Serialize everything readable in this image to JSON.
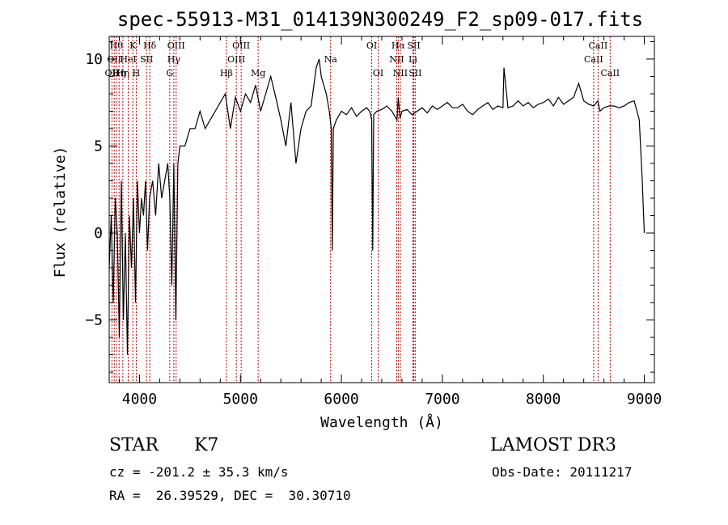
{
  "chart_data": {
    "type": "line",
    "title": "spec-55913-M31_014139N300249_F2_sp09-017.fits",
    "xlabel": "Wavelength (Å)",
    "ylabel": "Flux (relative)",
    "xlim": [
      3700,
      9100
    ],
    "ylim": [
      -8.6,
      11.3
    ],
    "xticks": [
      4000,
      5000,
      6000,
      7000,
      8000,
      9000
    ],
    "yticks": [
      -5,
      0,
      5,
      10
    ],
    "series": [
      {
        "name": "flux",
        "x": [
          3700,
          3720,
          3740,
          3760,
          3780,
          3800,
          3820,
          3840,
          3860,
          3880,
          3900,
          3920,
          3940,
          3960,
          3980,
          4000,
          4020,
          4040,
          4060,
          4080,
          4100,
          4130,
          4160,
          4190,
          4220,
          4250,
          4280,
          4300,
          4320,
          4340,
          4360,
          4380,
          4400,
          4450,
          4500,
          4550,
          4600,
          4650,
          4700,
          4750,
          4800,
          4850,
          4900,
          4950,
          5000,
          5050,
          5100,
          5150,
          5200,
          5250,
          5300,
          5350,
          5400,
          5450,
          5500,
          5550,
          5600,
          5650,
          5700,
          5750,
          5780,
          5800,
          5850,
          5880,
          5900,
          5910,
          5920,
          5950,
          6000,
          6050,
          6100,
          6150,
          6200,
          6250,
          6280,
          6300,
          6310,
          6320,
          6350,
          6400,
          6450,
          6500,
          6550,
          6563,
          6580,
          6600,
          6650,
          6700,
          6750,
          6800,
          6850,
          6900,
          6950,
          7000,
          7050,
          7100,
          7150,
          7200,
          7250,
          7300,
          7350,
          7400,
          7450,
          7500,
          7550,
          7600,
          7610,
          7650,
          7700,
          7750,
          7800,
          7850,
          7900,
          7950,
          8000,
          8050,
          8100,
          8150,
          8200,
          8250,
          8300,
          8350,
          8400,
          8450,
          8500,
          8540,
          8560,
          8600,
          8650,
          8700,
          8750,
          8800,
          8850,
          8900,
          8950,
          8980,
          9000
        ],
        "y": [
          -2,
          1,
          -4,
          2,
          0,
          -6,
          3,
          -5,
          0,
          -7,
          1,
          -2,
          2,
          -4,
          3,
          0,
          2,
          1,
          3,
          -1,
          2,
          3,
          1,
          4,
          2,
          3,
          4,
          2,
          -3,
          4,
          -5,
          4,
          5,
          5,
          6,
          6,
          7,
          6,
          6.5,
          7,
          7.5,
          8,
          6,
          7.8,
          7,
          8,
          7.5,
          8.5,
          7,
          8,
          9,
          7.8,
          6.5,
          5,
          7.5,
          4,
          6,
          7,
          7.3,
          9.5,
          10,
          9,
          8,
          7,
          6,
          -1,
          6,
          6.5,
          7,
          6.8,
          7.2,
          6.7,
          7,
          7.2,
          7,
          6.5,
          -1,
          6.8,
          7,
          7.1,
          7.3,
          7,
          6.5,
          7.8,
          6.6,
          7,
          7.1,
          6.8,
          7,
          7.2,
          6.9,
          7.3,
          7.1,
          7.3,
          7.5,
          7.2,
          7.2,
          7.4,
          7,
          6.8,
          7.1,
          7.3,
          7.5,
          7.1,
          7.3,
          7.2,
          9.5,
          7.2,
          7.3,
          7.6,
          7.3,
          7.5,
          7.2,
          7.4,
          7.5,
          7.7,
          7.3,
          7.8,
          7.4,
          7.6,
          7.8,
          8.6,
          7.6,
          7.4,
          7.3,
          7.6,
          7,
          7.2,
          7.3,
          7.3,
          7.2,
          7.3,
          7.5,
          7.6,
          6.5,
          3,
          0
        ]
      }
    ],
    "lines": [
      {
        "x": 3727,
        "labels": [
          "OII"
        ],
        "row": 2
      },
      {
        "x": 3750,
        "labels": [
          "OII"
        ],
        "row": 1
      },
      {
        "x": 3770,
        "labels": [
          "Hθ"
        ],
        "row": 0
      },
      {
        "x": 3798,
        "labels": [
          "Hη"
        ],
        "row": 2
      },
      {
        "x": 3835,
        "labels": [
          "Hη"
        ],
        "row": 2
      },
      {
        "x": 3889,
        "labels": [
          "HeI"
        ],
        "row": 1
      },
      {
        "x": 3934,
        "labels": [
          "K"
        ],
        "row": 0
      },
      {
        "x": 3968,
        "labels": [
          "H"
        ],
        "row": 2
      },
      {
        "x": 4070,
        "labels": [
          "SII"
        ],
        "row": 1
      },
      {
        "x": 4102,
        "labels": [
          "Hδ"
        ],
        "row": 0
      },
      {
        "x": 4300,
        "labels": [
          "G"
        ],
        "row": 2
      },
      {
        "x": 4340,
        "labels": [
          "Hγ"
        ],
        "row": 1
      },
      {
        "x": 4363,
        "labels": [
          "OIII"
        ],
        "row": 0
      },
      {
        "x": 4861,
        "labels": [
          "Hβ"
        ],
        "row": 2
      },
      {
        "x": 4959,
        "labels": [
          "OIII"
        ],
        "row": 1
      },
      {
        "x": 5007,
        "labels": [
          "OIII"
        ],
        "row": 0
      },
      {
        "x": 5175,
        "labels": [
          "Mg"
        ],
        "row": 2
      },
      {
        "x": 5893,
        "labels": [
          "Na"
        ],
        "row": 1
      },
      {
        "x": 6300,
        "labels": [
          "OI"
        ],
        "row": 0
      },
      {
        "x": 6364,
        "labels": [
          "OI"
        ],
        "row": 2
      },
      {
        "x": 6548,
        "labels": [
          "NII"
        ],
        "row": 1
      },
      {
        "x": 6563,
        "labels": [
          "Hα"
        ],
        "row": 0
      },
      {
        "x": 6584,
        "labels": [
          "NII"
        ],
        "row": 2
      },
      {
        "x": 6708,
        "labels": [
          "Li"
        ],
        "row": 1
      },
      {
        "x": 6717,
        "labels": [
          "SII"
        ],
        "row": 0
      },
      {
        "x": 6731,
        "labels": [
          "SII"
        ],
        "row": 2
      },
      {
        "x": 8498,
        "labels": [
          "CaII"
        ],
        "row": 1
      },
      {
        "x": 8542,
        "labels": [
          "CaII"
        ],
        "row": 0
      },
      {
        "x": 8662,
        "labels": [
          "CaII"
        ],
        "row": 2
      }
    ]
  },
  "info": {
    "class": "STAR",
    "subclass": "K7",
    "survey": "LAMOST DR3",
    "cz": "cz = -201.2 ± 35.3 km/s",
    "obs_date": "Obs-Date: 20111217",
    "radec": "RA =  26.39529, DEC =  30.30710"
  }
}
